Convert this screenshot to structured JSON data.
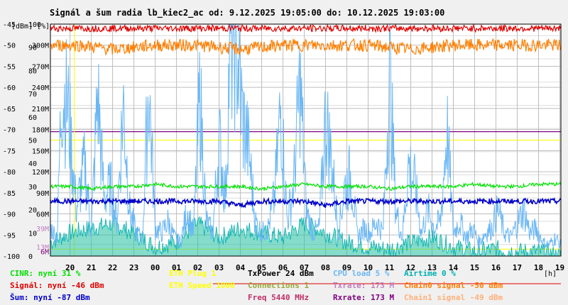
{
  "colors": {
    "background": "#f0f0f0",
    "plot_background": "#ffffff",
    "grid": "#bdbdbd",
    "cinr": "#00e000",
    "signal": "#e00000",
    "noise": "#0000c8",
    "cpu": "#6ab7f5",
    "chain0": "#ff7f00",
    "chain1": "#ffb07a",
    "eth": "#ffff00",
    "connections": "#9aaa3a",
    "txpower": "#000000",
    "freq": "#c0306a",
    "rxrate": "#800080",
    "txrate": "#c080c0",
    "airtime": "#00b0b0",
    "teal_fill": "#20c0a0",
    "red_line": "#e00000"
  },
  "chart_data": {
    "type": "line",
    "title": "Signál a šum radia lb_kiec2_ac od: 9.12.2025 19:05:00 do: 10.12.2025 19:03:00",
    "y_units": [
      "[dBm]",
      "[%]"
    ],
    "dbm_ticks": [
      "-45",
      "-50",
      "-55",
      "-60",
      "-65",
      "-70",
      "-75",
      "-80",
      "-85",
      "-90",
      "-95",
      "-100"
    ],
    "pct_ticks": [
      "100",
      "90",
      "80",
      "70",
      "60",
      "50",
      "40",
      "30",
      "20",
      "10",
      "0"
    ],
    "rate_ticks": [
      "300M",
      "270M",
      "240M",
      "210M",
      "180M",
      "150M",
      "120M",
      "90M",
      "60M",
      "39M",
      "13M",
      "6M"
    ],
    "x_ticks": [
      "20",
      "21",
      "22",
      "23",
      "00",
      "01",
      "02",
      "03",
      "04",
      "05",
      "06",
      "07",
      "08",
      "09",
      "10",
      "11",
      "12",
      "13",
      "14",
      "15",
      "16",
      "17",
      "18",
      "19"
    ],
    "x_unit": "[h]",
    "ylim_dbm": [
      -100,
      -45
    ],
    "ylim_pct": [
      0,
      100
    ],
    "xlim_hours": [
      19.08,
      43.05
    ],
    "reference_lines": {
      "rxrate_M": 173,
      "eth_speed_pct": 50,
      "eth_plug_pct": 1
    },
    "series": [
      {
        "name": "Chain0",
        "type": "band_dbm",
        "x": [
          19.1,
          20.5,
          22.0,
          24.0,
          26.0,
          28.0,
          30.0,
          32.0,
          34.0,
          36.0,
          38.0,
          40.0,
          42.0,
          43.0
        ],
        "values": [
          -50,
          -50,
          -51,
          -50,
          -50,
          -51,
          -50,
          -50,
          -50,
          -51,
          -50,
          -50,
          -50,
          -50
        ]
      },
      {
        "name": "Signál",
        "type": "band_dbm",
        "x": [
          19.1,
          21.0,
          23.0,
          25.0,
          27.0,
          29.0,
          31.0,
          33.0,
          35.0,
          37.0,
          39.0,
          41.0,
          43.0
        ],
        "values": [
          -46,
          -46,
          -46,
          -46,
          -46,
          -46,
          -46,
          -46,
          -46,
          -46,
          -46,
          -46,
          -46
        ]
      },
      {
        "name": "CINR",
        "type": "pct",
        "x": [
          19.1,
          20.0,
          21.0,
          22.0,
          23.0,
          24.0,
          25.0,
          26.0,
          27.0,
          28.0,
          29.0,
          30.0,
          31.0,
          32.0,
          33.0,
          34.0,
          35.0,
          36.0,
          37.0,
          38.0,
          39.0,
          40.0,
          41.0,
          42.0,
          43.0
        ],
        "values": [
          30,
          30,
          29,
          30,
          30,
          31,
          30,
          30,
          30,
          30,
          29,
          30,
          31,
          30,
          30,
          30,
          29,
          30,
          30,
          30,
          31,
          30,
          30,
          31,
          31
        ]
      },
      {
        "name": "Šum",
        "type": "dbm",
        "x": [
          19.1,
          20.0,
          21.0,
          22.0,
          23.0,
          24.0,
          25.0,
          26.0,
          27.0,
          28.0,
          29.0,
          30.0,
          31.0,
          32.0,
          33.0,
          34.0,
          35.0,
          36.0,
          37.0,
          38.0,
          39.0,
          40.0,
          41.0,
          42.0,
          43.0
        ],
        "values": [
          -87,
          -87,
          -87,
          -87,
          -87,
          -87,
          -87,
          -87,
          -87,
          -88,
          -87,
          -87,
          -87,
          -88,
          -87,
          -87,
          -87,
          -87,
          -87,
          -87,
          -87,
          -87,
          -87,
          -87,
          -87
        ]
      },
      {
        "name": "CPU load",
        "type": "pct",
        "x": [
          19.1,
          19.4,
          19.6,
          19.9,
          20.3,
          20.7,
          21.0,
          21.3,
          21.6,
          21.9,
          22.2,
          22.5,
          22.8,
          23.1,
          23.4,
          23.7,
          24.0,
          24.3,
          24.6,
          24.9,
          25.2,
          25.5,
          25.8,
          26.1,
          26.4,
          26.7,
          27.0,
          27.3,
          27.5,
          27.8,
          28.1,
          28.4,
          28.7,
          29.0,
          29.3,
          29.6,
          29.9,
          30.2,
          30.5,
          30.8,
          31.1,
          31.4,
          31.7,
          32.0,
          32.3,
          32.6,
          32.9,
          33.2,
          33.5,
          33.8,
          34.1,
          34.4,
          34.7,
          35.0,
          35.3,
          35.6,
          35.9,
          36.2,
          36.5,
          36.8,
          37.1,
          37.4,
          37.7,
          38.0,
          38.3,
          38.6,
          38.9,
          39.2,
          39.5,
          39.8,
          40.1,
          40.4,
          40.7,
          41.0,
          41.3,
          41.6,
          41.9,
          42.2,
          42.5,
          42.8,
          43.0
        ],
        "values": [
          12,
          8,
          72,
          65,
          20,
          40,
          10,
          70,
          25,
          30,
          15,
          66,
          20,
          10,
          8,
          75,
          12,
          10,
          15,
          8,
          6,
          20,
          10,
          70,
          15,
          10,
          50,
          25,
          90,
          95,
          60,
          45,
          15,
          10,
          12,
          25,
          65,
          15,
          30,
          75,
          20,
          10,
          12,
          60,
          40,
          10,
          30,
          35,
          8,
          12,
          10,
          15,
          10,
          80,
          20,
          8,
          40,
          30,
          10,
          20,
          12,
          15,
          55,
          10,
          15,
          8,
          12,
          6,
          10,
          12,
          20,
          10,
          8,
          14,
          20,
          10,
          12,
          6,
          5,
          8,
          5
        ]
      },
      {
        "name": "Airtime",
        "type": "pct",
        "x": [
          19.1,
          20.0,
          21.0,
          22.0,
          23.0,
          24.0,
          25.0,
          26.0,
          27.0,
          28.0,
          29.0,
          30.0,
          31.0,
          32.0,
          33.0,
          34.0,
          35.0,
          36.0,
          37.0,
          38.0,
          39.0,
          40.0,
          41.0,
          42.0,
          43.0
        ],
        "values": [
          6,
          10,
          12,
          14,
          10,
          4,
          6,
          14,
          8,
          12,
          10,
          8,
          14,
          10,
          6,
          4,
          3,
          6,
          8,
          4,
          2,
          3,
          2,
          2,
          0
        ]
      }
    ],
    "legend_rows": [
      [
        {
          "label": "CINR: nyní 31 %",
          "key": "cinr"
        },
        {
          "label": "ETH Plug 1",
          "key": "eth"
        },
        {
          "label": "TxPower 24 dBm",
          "key": "txpower"
        },
        {
          "label": "CPU load 5 %",
          "key": "cpu"
        },
        {
          "label": "Airtime 0 %",
          "key": "airtime"
        }
      ],
      [
        {
          "label": "Signál: nyní -46 dBm",
          "key": "signal"
        },
        {
          "label": "ETH Speed 1000",
          "key": "eth"
        },
        {
          "label": "Connections 1",
          "key": "connections"
        },
        {
          "label": "Txrate: 173 M",
          "key": "txrate"
        },
        {
          "label": "Chain0 signal -50 dBm",
          "key": "chain0"
        }
      ],
      [
        {
          "label": "Šum: nyní -87 dBm",
          "key": "noise"
        },
        {
          "label": "",
          "key": "eth"
        },
        {
          "label": "Freq 5440 MHz",
          "key": "freq"
        },
        {
          "label": "Rxrate: 173 M",
          "key": "rxrate"
        },
        {
          "label": "Chain1 signal -49 dBm",
          "key": "chain1"
        }
      ]
    ]
  }
}
